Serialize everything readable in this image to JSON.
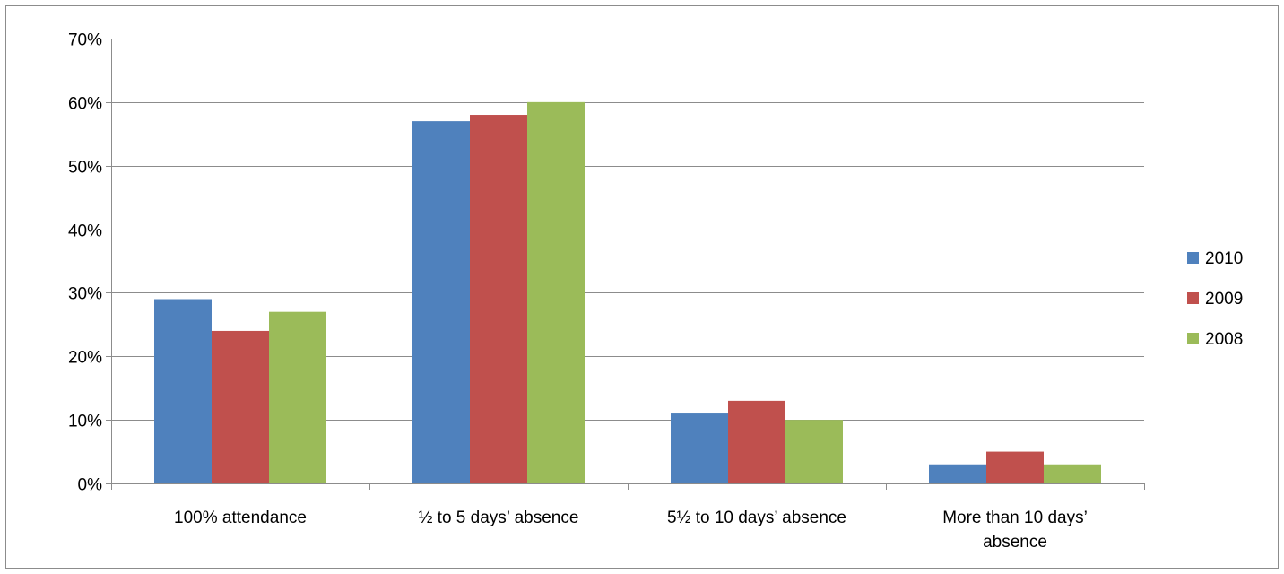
{
  "chart_data": {
    "type": "bar",
    "title": "",
    "xlabel": "",
    "ylabel": "",
    "ylim": [
      0,
      70
    ],
    "y_ticks": [
      0,
      10,
      20,
      30,
      40,
      50,
      60,
      70
    ],
    "y_tick_labels": [
      "0%",
      "10%",
      "20%",
      "30%",
      "40%",
      "50%",
      "60%",
      "70%"
    ],
    "grid": true,
    "legend_position": "right",
    "categories": [
      [
        "100% attendance"
      ],
      [
        "½ to 5 days’ absence"
      ],
      [
        "5½ to 10 days’ absence"
      ],
      [
        "More than 10 days’",
        "absence"
      ]
    ],
    "series": [
      {
        "name": "2010",
        "color": "#4f81bd",
        "values": [
          29,
          57,
          11,
          3
        ]
      },
      {
        "name": "2009",
        "color": "#c0504d",
        "values": [
          24,
          58,
          13,
          5
        ]
      },
      {
        "name": "2008",
        "color": "#9bbb59",
        "values": [
          27,
          60,
          10,
          3
        ]
      }
    ]
  }
}
